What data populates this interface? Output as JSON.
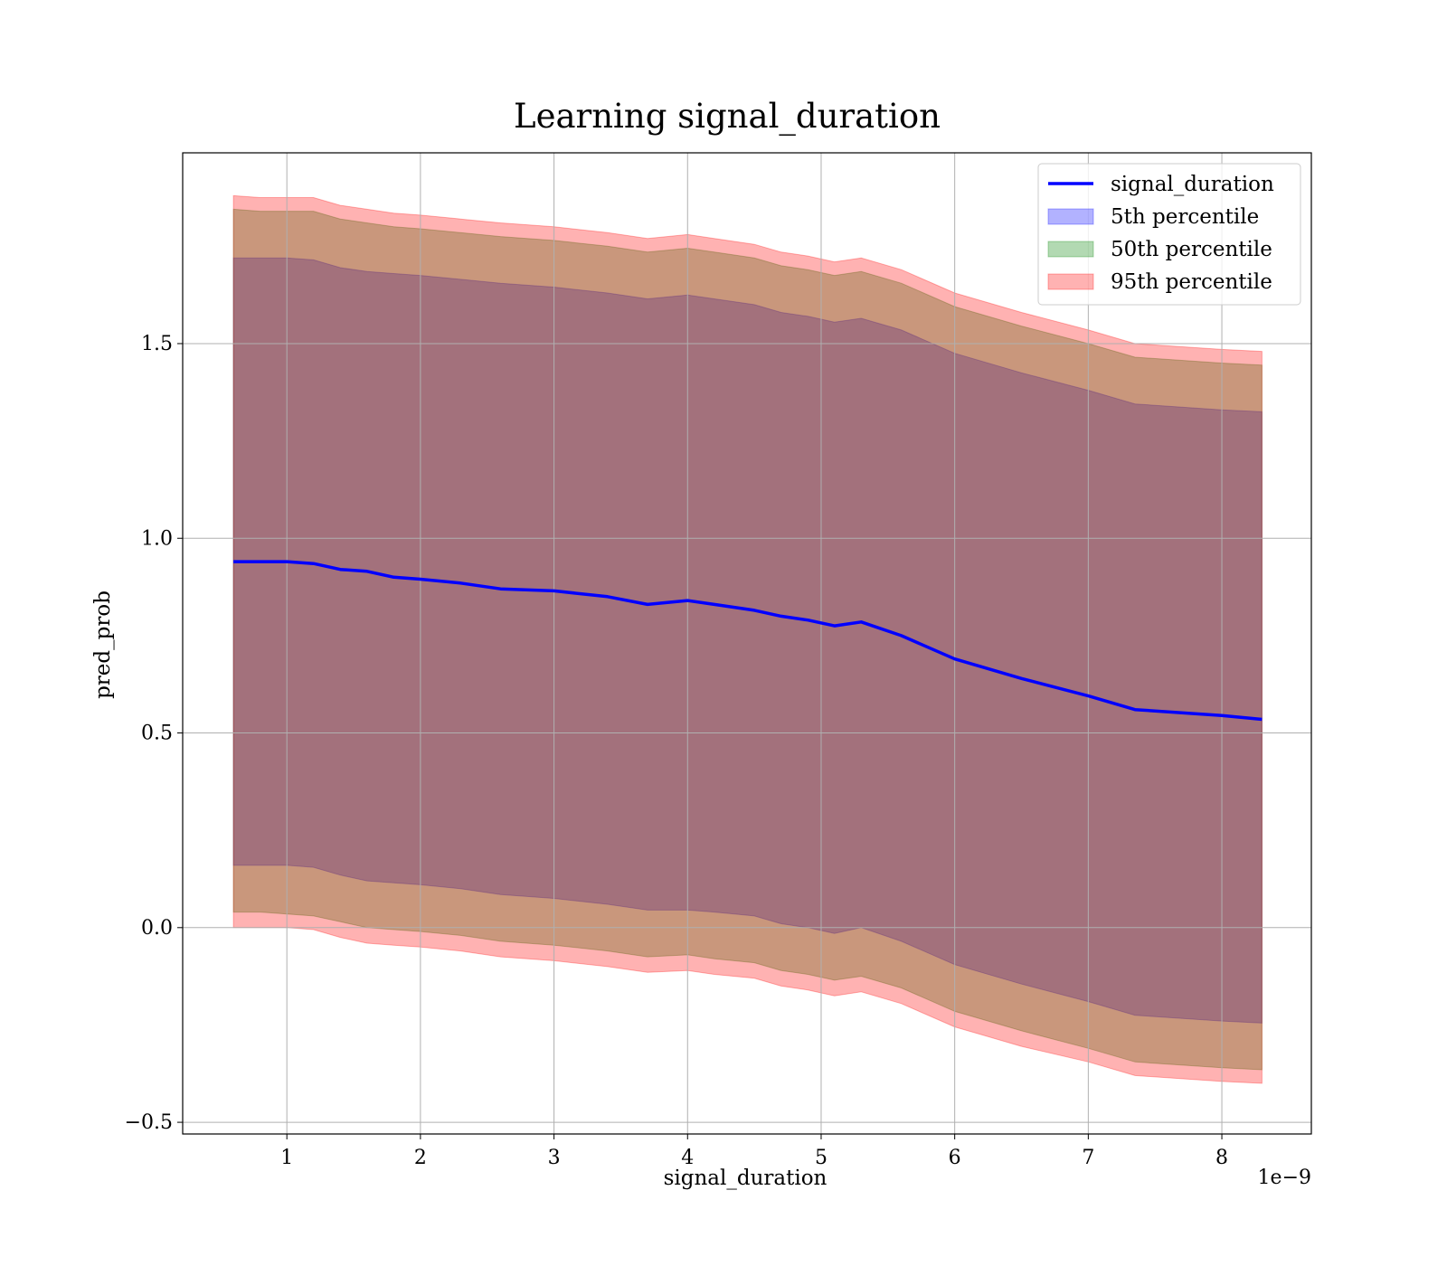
{
  "chart_data": {
    "type": "area",
    "title": "Learning signal_duration",
    "xlabel": "signal_duration",
    "ylabel": "pred_prob",
    "x_offset_label": "1e−9",
    "xlim": [
      0.22,
      8.67
    ],
    "ylim": [
      -0.53,
      1.99
    ],
    "x_ticks": [
      1,
      2,
      3,
      4,
      5,
      6,
      7,
      8
    ],
    "x_tick_labels": [
      "1",
      "2",
      "3",
      "4",
      "5",
      "6",
      "7",
      "8"
    ],
    "y_ticks": [
      -0.5,
      0.0,
      0.5,
      1.0,
      1.5
    ],
    "y_tick_labels": [
      "−0.5",
      "0.0",
      "0.5",
      "1.0",
      "1.5"
    ],
    "grid": true,
    "legend_position": "top-right",
    "x": [
      0.6,
      0.8,
      1.0,
      1.2,
      1.4,
      1.6,
      1.8,
      2.0,
      2.3,
      2.6,
      3.0,
      3.4,
      3.7,
      4.0,
      4.2,
      4.5,
      4.7,
      4.9,
      5.1,
      5.3,
      5.6,
      6.0,
      6.5,
      7.0,
      7.35,
      8.0,
      8.3
    ],
    "series": [
      {
        "name": "signal_duration",
        "kind": "line",
        "color": "#0000ff",
        "values": [
          0.94,
          0.94,
          0.94,
          0.935,
          0.92,
          0.915,
          0.9,
          0.895,
          0.885,
          0.87,
          0.865,
          0.85,
          0.83,
          0.84,
          0.83,
          0.815,
          0.8,
          0.79,
          0.775,
          0.785,
          0.75,
          0.69,
          0.64,
          0.595,
          0.56,
          0.545,
          0.535
        ]
      },
      {
        "name": "5th percentile",
        "kind": "band",
        "color": "#0000ff",
        "lower": [
          0.16,
          0.16,
          0.16,
          0.155,
          0.135,
          0.12,
          0.115,
          0.11,
          0.1,
          0.085,
          0.075,
          0.06,
          0.045,
          0.045,
          0.04,
          0.03,
          0.01,
          0.0,
          -0.015,
          0.0,
          -0.035,
          -0.095,
          -0.145,
          -0.19,
          -0.225,
          -0.24,
          -0.245
        ],
        "upper": [
          1.72,
          1.72,
          1.72,
          1.715,
          1.695,
          1.685,
          1.68,
          1.675,
          1.665,
          1.655,
          1.645,
          1.63,
          1.615,
          1.625,
          1.615,
          1.6,
          1.58,
          1.57,
          1.555,
          1.565,
          1.535,
          1.475,
          1.425,
          1.38,
          1.345,
          1.33,
          1.325
        ]
      },
      {
        "name": "50th percentile",
        "kind": "band",
        "color": "#008000",
        "lower": [
          0.04,
          0.04,
          0.035,
          0.03,
          0.015,
          0.0,
          -0.005,
          -0.01,
          -0.02,
          -0.035,
          -0.045,
          -0.06,
          -0.075,
          -0.07,
          -0.08,
          -0.09,
          -0.11,
          -0.12,
          -0.135,
          -0.125,
          -0.155,
          -0.215,
          -0.265,
          -0.31,
          -0.345,
          -0.36,
          -0.365
        ],
        "upper": [
          1.845,
          1.84,
          1.84,
          1.84,
          1.82,
          1.81,
          1.8,
          1.795,
          1.785,
          1.775,
          1.765,
          1.75,
          1.735,
          1.745,
          1.735,
          1.72,
          1.7,
          1.69,
          1.675,
          1.685,
          1.655,
          1.595,
          1.545,
          1.5,
          1.465,
          1.45,
          1.445
        ]
      },
      {
        "name": "95th percentile",
        "kind": "band",
        "color": "#ff0000",
        "lower": [
          0.0,
          0.0,
          0.0,
          -0.005,
          -0.025,
          -0.04,
          -0.045,
          -0.05,
          -0.06,
          -0.075,
          -0.085,
          -0.1,
          -0.115,
          -0.11,
          -0.12,
          -0.13,
          -0.15,
          -0.16,
          -0.175,
          -0.165,
          -0.195,
          -0.255,
          -0.305,
          -0.345,
          -0.38,
          -0.395,
          -0.4
        ],
        "upper": [
          1.88,
          1.875,
          1.875,
          1.875,
          1.855,
          1.845,
          1.835,
          1.83,
          1.82,
          1.81,
          1.8,
          1.785,
          1.77,
          1.78,
          1.77,
          1.755,
          1.735,
          1.725,
          1.71,
          1.72,
          1.69,
          1.63,
          1.58,
          1.535,
          1.5,
          1.485,
          1.48
        ]
      }
    ]
  }
}
